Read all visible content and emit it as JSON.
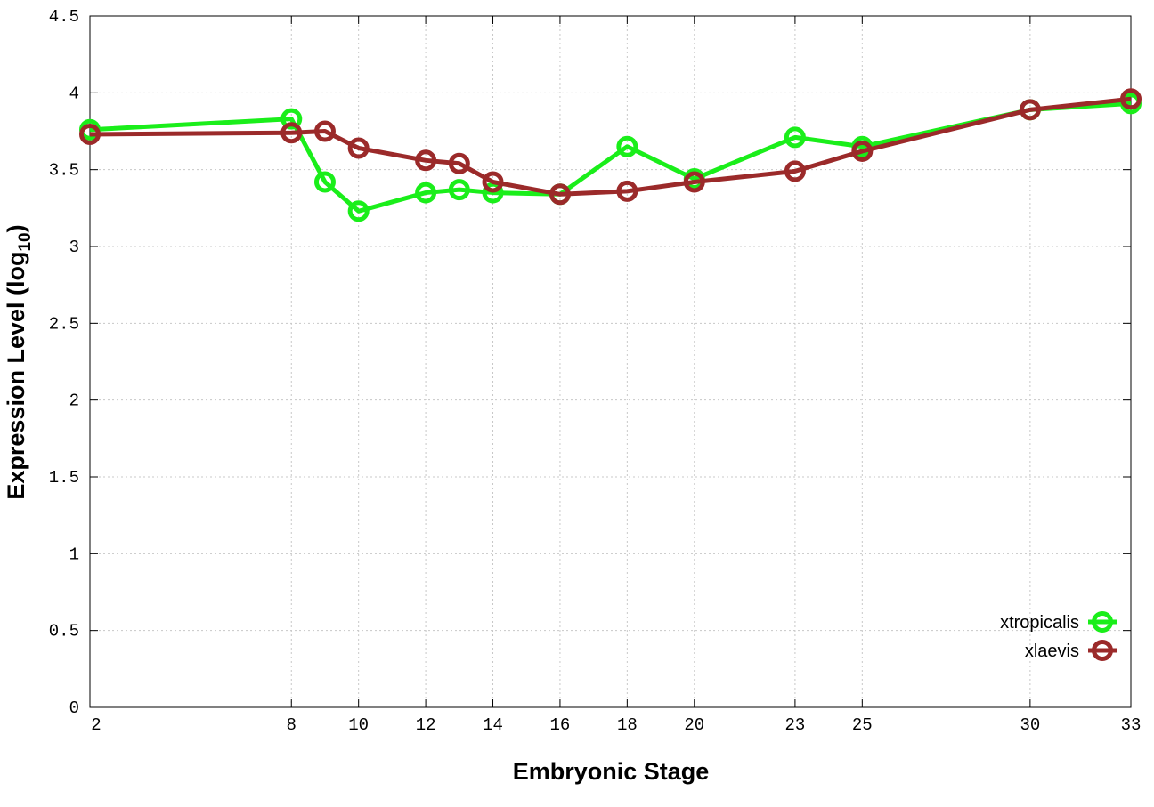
{
  "chart_data": {
    "type": "line",
    "title": "",
    "xlabel": "Embryonic Stage",
    "ylabel": "Expression Level (log",
    "ylabel_sub": "10",
    "ylabel_end": ")",
    "xlim": [
      2,
      33
    ],
    "ylim": [
      0,
      4.5
    ],
    "xticks": [
      2,
      8,
      10,
      12,
      14,
      16,
      18,
      20,
      23,
      25,
      30,
      33
    ],
    "yticks": [
      0,
      0.5,
      1,
      1.5,
      2,
      2.5,
      3,
      3.5,
      4,
      4.5
    ],
    "ytick_labels": [
      "0",
      "0.5",
      "1",
      "1.5",
      "2",
      "2.5",
      "3",
      "3.5",
      "4",
      "4.5"
    ],
    "grid": true,
    "legend_position": "bottom-right",
    "x": [
      2,
      8,
      9,
      10,
      12,
      13,
      14,
      16,
      18,
      20,
      23,
      25,
      30,
      33
    ],
    "series": [
      {
        "name": "xtropicalis",
        "color": "#1aee1a",
        "values": [
          3.76,
          3.83,
          3.42,
          3.23,
          3.35,
          3.37,
          3.35,
          3.34,
          3.65,
          3.44,
          3.71,
          3.65,
          3.89,
          3.93
        ]
      },
      {
        "name": "xlaevis",
        "color": "#9b2a2a",
        "values": [
          3.73,
          3.74,
          3.75,
          3.64,
          3.56,
          3.54,
          3.42,
          3.34,
          3.36,
          3.42,
          3.49,
          3.62,
          3.89,
          3.96
        ]
      }
    ]
  }
}
